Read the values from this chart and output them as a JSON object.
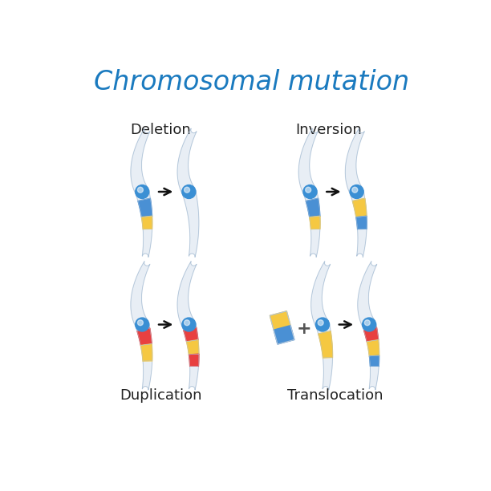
{
  "title": "Chromosomal mutation",
  "title_color": "#1a7abf",
  "title_fontsize": 24,
  "background_color": "#ffffff",
  "labels": {
    "deletion": "Deletion",
    "inversion": "Inversion",
    "duplication": "Duplication",
    "translocation": "Translocation"
  },
  "label_fontsize": 13,
  "label_color": "#222222",
  "chrom_body_color": "#e8eef5",
  "chrom_outline_color": "#b0c4d8",
  "chrom_gradient_color": "#f5f8fc",
  "centromere_color": "#3a8fd4",
  "band_blue": "#4a90d4",
  "band_yellow": "#f5c842",
  "band_red": "#e84040",
  "arrow_color": "#111111",
  "plus_color": "#555555"
}
